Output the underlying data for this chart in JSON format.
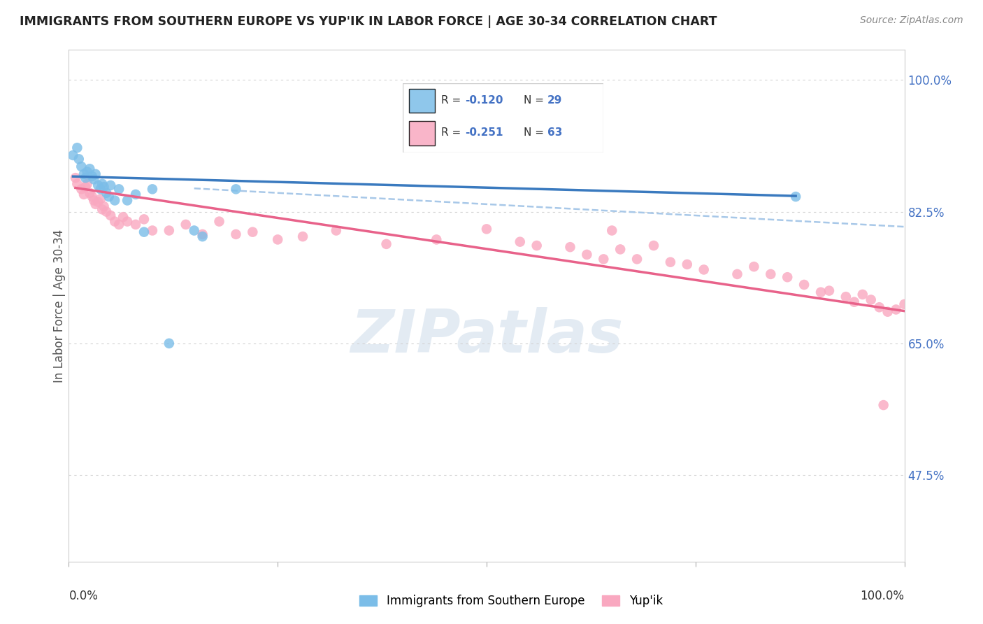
{
  "title": "IMMIGRANTS FROM SOUTHERN EUROPE VS YUP'IK IN LABOR FORCE | AGE 30-34 CORRELATION CHART",
  "source": "Source: ZipAtlas.com",
  "ylabel": "In Labor Force | Age 30-34",
  "yticks": [
    0.475,
    0.65,
    0.825,
    1.0
  ],
  "ytick_labels": [
    "47.5%",
    "65.0%",
    "82.5%",
    "100.0%"
  ],
  "xmin": 0.0,
  "xmax": 1.0,
  "ymin": 0.36,
  "ymax": 1.04,
  "blue_color": "#7bbde8",
  "pink_color": "#f9a8c0",
  "blue_line_color": "#3a7abf",
  "pink_line_color": "#e8628a",
  "dash_color": "#a8c8e8",
  "watermark_text": "ZIPatlas",
  "blue_r": "-0.120",
  "blue_n": "29",
  "pink_r": "-0.251",
  "pink_n": "63",
  "blue_points_x": [
    0.005,
    0.01,
    0.012,
    0.015,
    0.018,
    0.02,
    0.022,
    0.025,
    0.028,
    0.03,
    0.032,
    0.035,
    0.038,
    0.04,
    0.042,
    0.045,
    0.048,
    0.05,
    0.055,
    0.06,
    0.07,
    0.08,
    0.09,
    0.1,
    0.12,
    0.15,
    0.16,
    0.2,
    0.87
  ],
  "blue_points_y": [
    0.9,
    0.91,
    0.895,
    0.885,
    0.875,
    0.87,
    0.878,
    0.882,
    0.872,
    0.868,
    0.875,
    0.86,
    0.855,
    0.862,
    0.858,
    0.85,
    0.845,
    0.86,
    0.84,
    0.855,
    0.84,
    0.848,
    0.798,
    0.855,
    0.65,
    0.8,
    0.792,
    0.855,
    0.845
  ],
  "pink_points_x": [
    0.008,
    0.01,
    0.015,
    0.018,
    0.02,
    0.022,
    0.025,
    0.028,
    0.03,
    0.032,
    0.035,
    0.038,
    0.04,
    0.042,
    0.045,
    0.05,
    0.055,
    0.06,
    0.065,
    0.07,
    0.08,
    0.09,
    0.1,
    0.12,
    0.14,
    0.16,
    0.18,
    0.2,
    0.22,
    0.25,
    0.28,
    0.32,
    0.38,
    0.44,
    0.5,
    0.54,
    0.56,
    0.6,
    0.62,
    0.64,
    0.65,
    0.66,
    0.68,
    0.7,
    0.72,
    0.74,
    0.76,
    0.8,
    0.82,
    0.84,
    0.86,
    0.88,
    0.9,
    0.91,
    0.93,
    0.94,
    0.95,
    0.96,
    0.97,
    0.975,
    0.98,
    0.99,
    1.0
  ],
  "pink_points_y": [
    0.87,
    0.862,
    0.855,
    0.848,
    0.858,
    0.862,
    0.85,
    0.845,
    0.84,
    0.835,
    0.838,
    0.842,
    0.828,
    0.832,
    0.825,
    0.82,
    0.812,
    0.808,
    0.818,
    0.812,
    0.808,
    0.815,
    0.8,
    0.8,
    0.808,
    0.795,
    0.812,
    0.795,
    0.798,
    0.788,
    0.792,
    0.8,
    0.782,
    0.788,
    0.802,
    0.785,
    0.78,
    0.778,
    0.768,
    0.762,
    0.8,
    0.775,
    0.762,
    0.78,
    0.758,
    0.755,
    0.748,
    0.742,
    0.752,
    0.742,
    0.738,
    0.728,
    0.718,
    0.72,
    0.712,
    0.705,
    0.715,
    0.708,
    0.698,
    0.568,
    0.692,
    0.695,
    0.702
  ]
}
